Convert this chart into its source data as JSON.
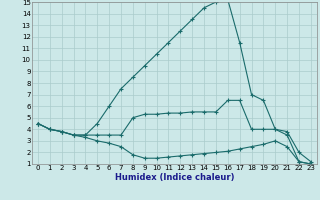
{
  "line1_x": [
    0,
    1,
    2,
    3,
    4,
    5,
    6,
    7,
    8,
    9,
    10,
    11,
    12,
    13,
    14,
    15,
    16,
    17,
    18,
    19,
    20,
    21,
    22,
    23
  ],
  "line1_y": [
    4.5,
    4.0,
    3.8,
    3.5,
    3.5,
    4.5,
    6.0,
    7.5,
    8.5,
    9.5,
    10.5,
    11.5,
    12.5,
    13.5,
    14.5,
    15.0,
    15.2,
    11.5,
    7.0,
    6.5,
    4.0,
    3.5,
    1.2,
    1.0
  ],
  "line2_x": [
    0,
    1,
    2,
    3,
    4,
    5,
    6,
    7,
    8,
    9,
    10,
    11,
    12,
    13,
    14,
    15,
    16,
    17,
    18,
    19,
    20,
    21,
    22,
    23
  ],
  "line2_y": [
    4.5,
    4.0,
    3.8,
    3.5,
    3.5,
    3.5,
    3.5,
    3.5,
    5.0,
    5.3,
    5.3,
    5.4,
    5.4,
    5.5,
    5.5,
    5.5,
    6.5,
    6.5,
    4.0,
    4.0,
    4.0,
    3.8,
    2.0,
    1.2
  ],
  "line3_x": [
    0,
    1,
    2,
    3,
    4,
    5,
    6,
    7,
    8,
    9,
    10,
    11,
    12,
    13,
    14,
    15,
    16,
    17,
    18,
    19,
    20,
    21,
    22,
    23
  ],
  "line3_y": [
    4.5,
    4.0,
    3.8,
    3.5,
    3.3,
    3.0,
    2.8,
    2.5,
    1.8,
    1.5,
    1.5,
    1.6,
    1.7,
    1.8,
    1.9,
    2.0,
    2.1,
    2.3,
    2.5,
    2.7,
    3.0,
    2.5,
    1.2,
    1.0
  ],
  "line_color": "#1a6b6b",
  "marker": "+",
  "markersize": 3,
  "linewidth": 0.8,
  "bg_color": "#cce8e8",
  "grid_color": "#aacccc",
  "xlabel": "Humidex (Indice chaleur)",
  "xlim": [
    -0.5,
    23.5
  ],
  "ylim": [
    1,
    15
  ],
  "xticks": [
    0,
    1,
    2,
    3,
    4,
    5,
    6,
    7,
    8,
    9,
    10,
    11,
    12,
    13,
    14,
    15,
    16,
    17,
    18,
    19,
    20,
    21,
    22,
    23
  ],
  "yticks": [
    1,
    2,
    3,
    4,
    5,
    6,
    7,
    8,
    9,
    10,
    11,
    12,
    13,
    14,
    15
  ],
  "tick_fontsize": 5.0,
  "xlabel_fontsize": 6.0
}
